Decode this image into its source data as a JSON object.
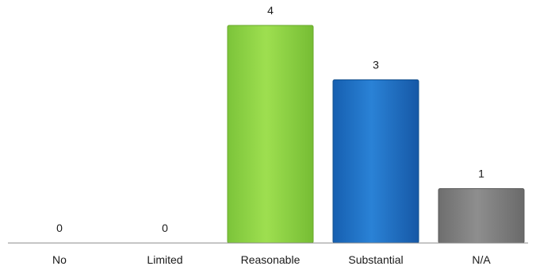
{
  "chart_data": {
    "type": "bar",
    "title": "",
    "xlabel": "",
    "ylabel": "",
    "categories": [
      "No",
      "Limited",
      "Reasonable",
      "Substantial",
      "N/A"
    ],
    "values": [
      0,
      0,
      4,
      3,
      1
    ],
    "ylim": [
      0,
      4
    ],
    "grid": false,
    "legend": "none",
    "colors": [
      "#5aa02c",
      "#5aa02c",
      "#8fd33e",
      "#1f6fc1",
      "#7f7f7f"
    ],
    "data_labels": [
      "0",
      "0",
      "4",
      "3",
      "1"
    ]
  }
}
